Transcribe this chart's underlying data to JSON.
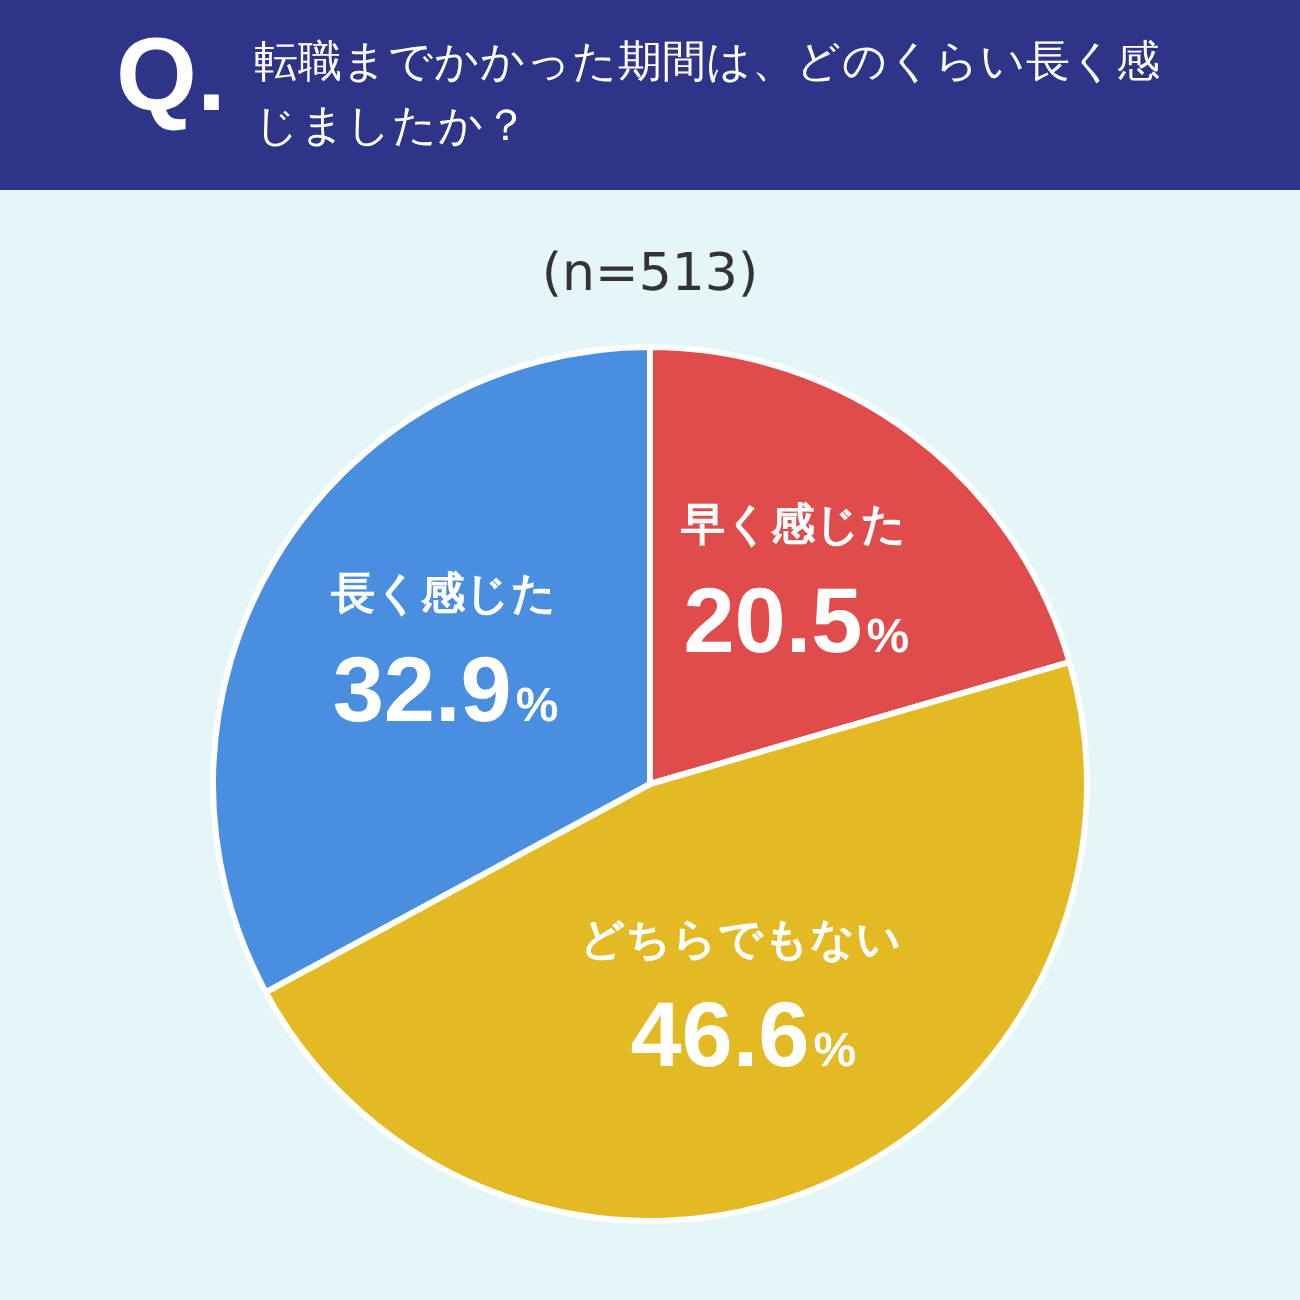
{
  "chart_data": {
    "type": "pie",
    "title": "転職までかかった期間は、どのくらい長く感じましたか？",
    "subtitle": "(n=513)",
    "annotations": [
      "Q."
    ],
    "categories": [
      "早く感じた",
      "どちらでもない",
      "長く感じた"
    ],
    "values": [
      20.5,
      46.6,
      32.9
    ],
    "value_labels": [
      "20.5%",
      "46.6%",
      "32.9%"
    ],
    "colors": [
      "#e04b4b",
      "#e3b924",
      "#4a8ee0"
    ],
    "legend": false
  }
}
